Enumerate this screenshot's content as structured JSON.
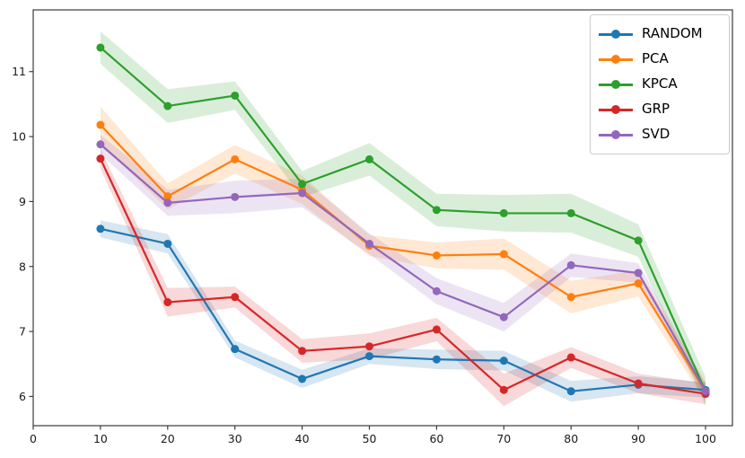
{
  "chart_data": {
    "type": "line",
    "title": "",
    "xlabel": "",
    "ylabel": "",
    "x": [
      10,
      20,
      30,
      40,
      50,
      60,
      70,
      80,
      90,
      100
    ],
    "series": [
      {
        "name": "RANDOM",
        "color": "#1f77b4",
        "values": [
          8.58,
          8.35,
          6.73,
          6.27,
          6.62,
          6.57,
          6.55,
          6.08,
          6.18,
          6.1
        ],
        "band": [
          0.13,
          0.15,
          0.13,
          0.14,
          0.12,
          0.15,
          0.15,
          0.16,
          0.13,
          0.12
        ]
      },
      {
        "name": "PCA",
        "color": "#ff7f0e",
        "values": [
          10.18,
          9.08,
          9.65,
          9.18,
          8.32,
          8.17,
          8.19,
          7.53,
          7.74,
          6.07
        ],
        "band": [
          0.28,
          0.2,
          0.22,
          0.22,
          0.16,
          0.2,
          0.24,
          0.25,
          0.2,
          0.15
        ]
      },
      {
        "name": "KPCA",
        "color": "#2ca02c",
        "values": [
          11.37,
          10.47,
          10.63,
          9.27,
          9.65,
          8.87,
          8.82,
          8.82,
          8.4,
          6.08
        ],
        "band": [
          0.25,
          0.26,
          0.22,
          0.2,
          0.25,
          0.25,
          0.28,
          0.3,
          0.25,
          0.22
        ]
      },
      {
        "name": "GRP",
        "color": "#d62728",
        "values": [
          9.66,
          7.45,
          7.53,
          6.7,
          6.77,
          7.03,
          6.1,
          6.6,
          6.2,
          6.04
        ],
        "band": [
          0.15,
          0.22,
          0.16,
          0.18,
          0.2,
          0.18,
          0.25,
          0.16,
          0.15,
          0.16
        ]
      },
      {
        "name": "SVD",
        "color": "#9467bd",
        "values": [
          9.88,
          8.98,
          9.07,
          9.13,
          8.35,
          7.62,
          7.22,
          8.02,
          7.9,
          6.08
        ],
        "band": [
          0.15,
          0.2,
          0.25,
          0.22,
          0.16,
          0.2,
          0.22,
          0.18,
          0.15,
          0.12
        ]
      }
    ],
    "x_ticks": [
      "0",
      "10",
      "20",
      "30",
      "40",
      "50",
      "60",
      "70",
      "80",
      "90",
      "100"
    ],
    "x_tick_values": [
      0,
      10,
      20,
      30,
      40,
      50,
      60,
      70,
      80,
      90,
      100
    ],
    "y_ticks": [
      "6",
      "7",
      "8",
      "9",
      "10",
      "11"
    ],
    "y_tick_values": [
      6,
      7,
      8,
      9,
      10,
      11
    ],
    "xlim": [
      0,
      104
    ],
    "ylim": [
      5.55,
      11.95
    ],
    "grid": false,
    "legend_position": "upper right",
    "marker": "circle",
    "band_opacity": 0.18,
    "background": "#ffffff",
    "axis_color": "#3b3b3b",
    "tick_label_color": "#1a1a1a"
  }
}
